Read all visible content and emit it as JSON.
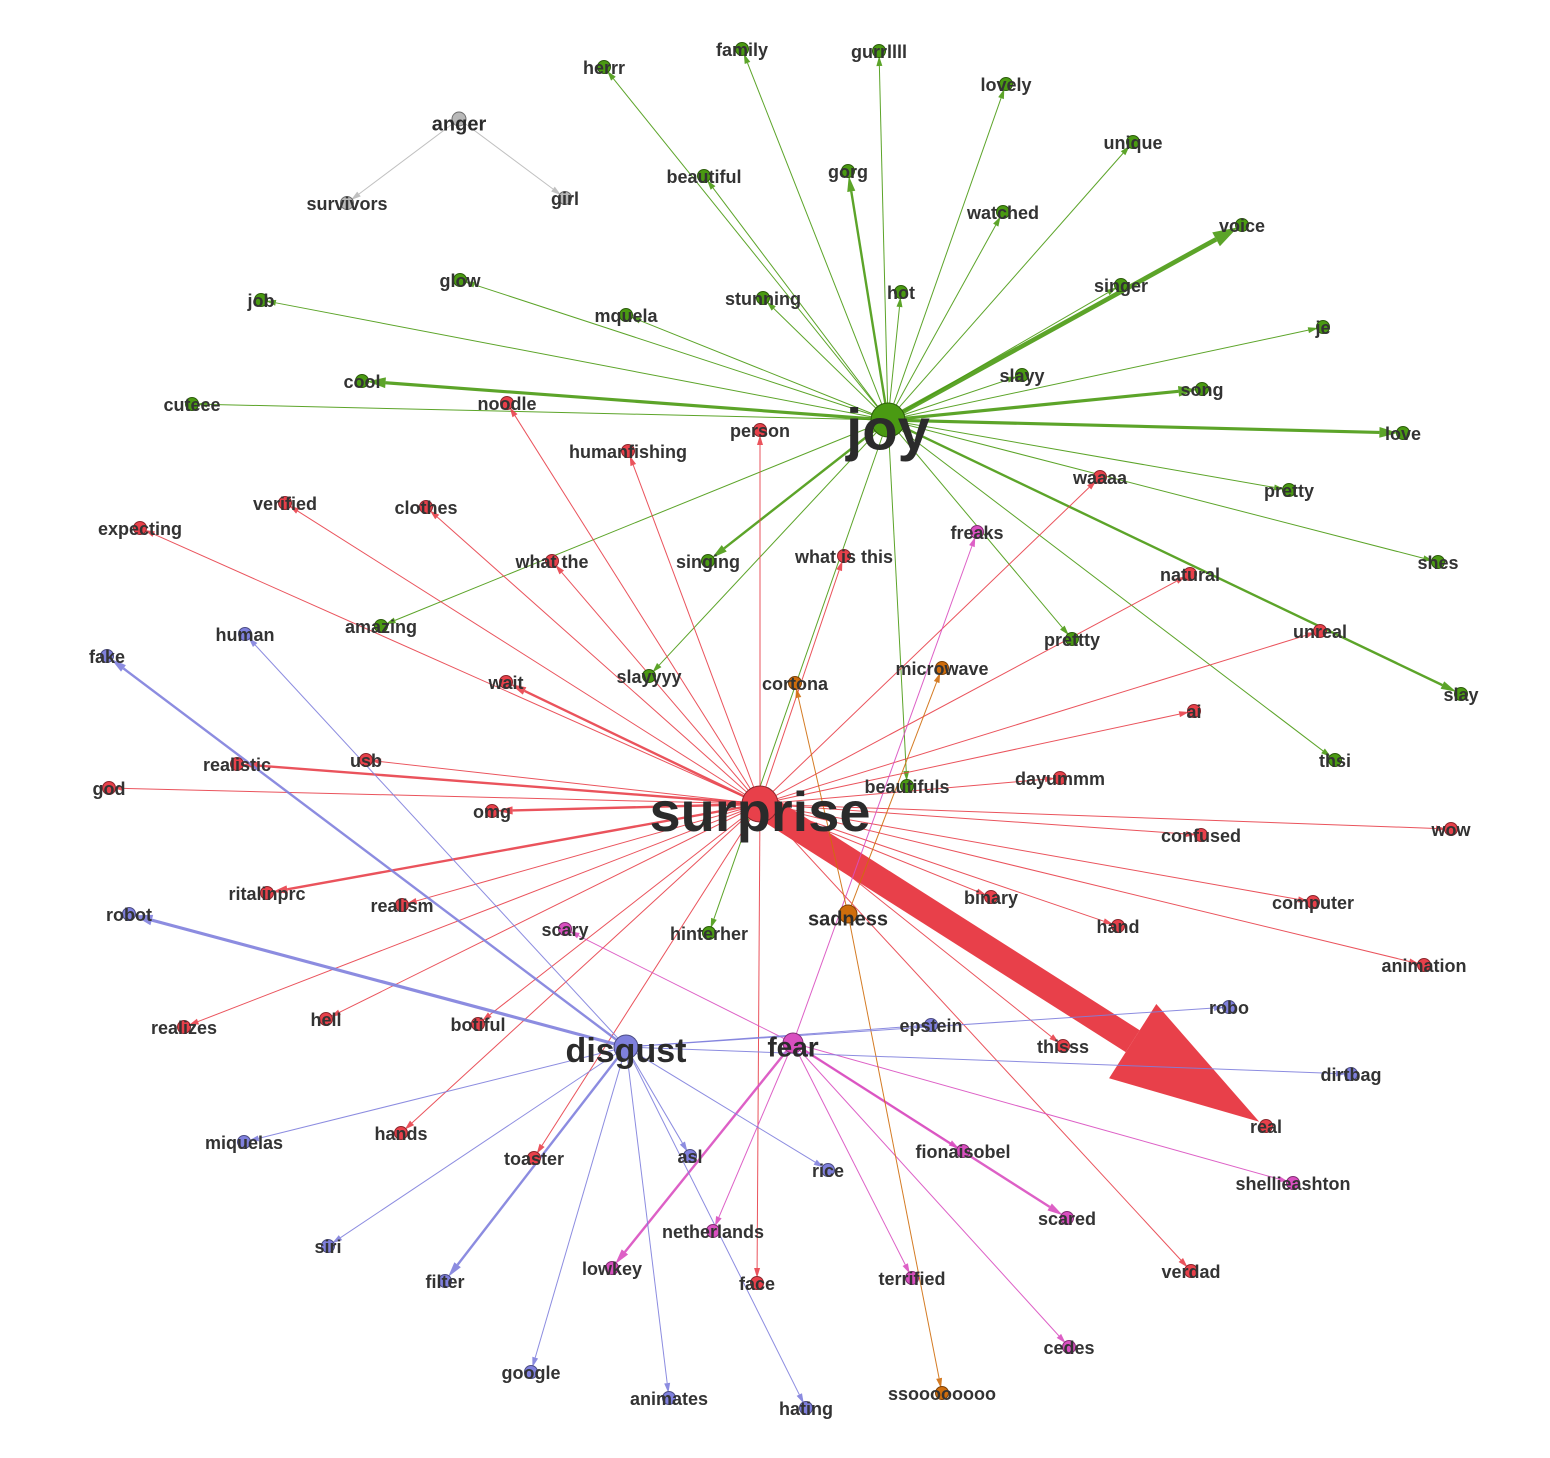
{
  "colors": {
    "joy": "#4a9a12",
    "surprise": "#e8404a",
    "disgust": "#7f80dd",
    "fear": "#d94fc0",
    "sadness": "#cf6d0c",
    "anger": "#b9b9b9"
  },
  "hubs": [
    {
      "id": "joy",
      "label": "joy",
      "group": "joy"
    },
    {
      "id": "surprise",
      "label": "surprise",
      "group": "surprise"
    },
    {
      "id": "disgust",
      "label": "disgust",
      "group": "disgust"
    },
    {
      "id": "fear",
      "label": "fear",
      "group": "fear"
    },
    {
      "id": "sadness",
      "label": "sadness",
      "group": "sadness"
    },
    {
      "id": "anger",
      "label": "anger",
      "group": "anger"
    }
  ],
  "nodes": [
    {
      "id": "herrr",
      "label": "herrr",
      "group": "joy"
    },
    {
      "id": "family",
      "label": "family",
      "group": "joy"
    },
    {
      "id": "gurrllll",
      "label": "gurrllll",
      "group": "joy"
    },
    {
      "id": "lovely",
      "label": "lovely",
      "group": "joy"
    },
    {
      "id": "unique",
      "label": "unique",
      "group": "joy"
    },
    {
      "id": "beautiful",
      "label": "beautiful",
      "group": "joy"
    },
    {
      "id": "gorg",
      "label": "gorg",
      "group": "joy"
    },
    {
      "id": "watched",
      "label": "watched",
      "group": "joy"
    },
    {
      "id": "voice",
      "label": "voice",
      "group": "joy"
    },
    {
      "id": "job",
      "label": "job",
      "group": "joy"
    },
    {
      "id": "glow",
      "label": "glow",
      "group": "joy"
    },
    {
      "id": "mquela",
      "label": "mquela",
      "group": "joy"
    },
    {
      "id": "stunning",
      "label": "stunning",
      "group": "joy"
    },
    {
      "id": "hot",
      "label": "hot",
      "group": "joy"
    },
    {
      "id": "singer",
      "label": "singer",
      "group": "joy"
    },
    {
      "id": "je",
      "label": "je",
      "group": "joy"
    },
    {
      "id": "cool",
      "label": "cool",
      "group": "joy"
    },
    {
      "id": "slayy",
      "label": "slayy",
      "group": "joy"
    },
    {
      "id": "song",
      "label": "song",
      "group": "joy"
    },
    {
      "id": "cuteee",
      "label": "cuteee",
      "group": "joy"
    },
    {
      "id": "love",
      "label": "love",
      "group": "joy"
    },
    {
      "id": "pretty",
      "label": "pretty",
      "group": "joy"
    },
    {
      "id": "shes",
      "label": "shes",
      "group": "joy"
    },
    {
      "id": "singing",
      "label": "singing",
      "group": "joy"
    },
    {
      "id": "amazing",
      "label": "amazing",
      "group": "joy"
    },
    {
      "id": "prettty",
      "label": "prettty",
      "group": "joy"
    },
    {
      "id": "slayyyy",
      "label": "slayyyy",
      "group": "joy"
    },
    {
      "id": "slay",
      "label": "slay",
      "group": "joy"
    },
    {
      "id": "thsi",
      "label": "thsi",
      "group": "joy"
    },
    {
      "id": "beautifuls",
      "label": "beautifuls",
      "group": "joy"
    },
    {
      "id": "hinterher",
      "label": "hinterher",
      "group": "joy"
    },
    {
      "id": "survivors",
      "label": "survivors",
      "group": "anger"
    },
    {
      "id": "girl",
      "label": "girl",
      "group": "anger"
    },
    {
      "id": "noodle",
      "label": "noodle",
      "group": "surprise"
    },
    {
      "id": "person",
      "label": "person",
      "group": "surprise"
    },
    {
      "id": "humanfishing",
      "label": "humanfishing",
      "group": "surprise"
    },
    {
      "id": "waaaa",
      "label": "waaaa",
      "group": "surprise"
    },
    {
      "id": "expecting",
      "label": "expecting",
      "group": "surprise"
    },
    {
      "id": "verified",
      "label": "verified",
      "group": "surprise"
    },
    {
      "id": "clothes",
      "label": "clothes",
      "group": "surprise"
    },
    {
      "id": "what_the",
      "label": "what the",
      "group": "surprise"
    },
    {
      "id": "what_is_this",
      "label": "what is this",
      "group": "surprise"
    },
    {
      "id": "natural",
      "label": "natural",
      "group": "surprise"
    },
    {
      "id": "unreal",
      "label": "unreal",
      "group": "surprise"
    },
    {
      "id": "wait",
      "label": "wait",
      "group": "surprise"
    },
    {
      "id": "ai",
      "label": "ai",
      "group": "surprise"
    },
    {
      "id": "realistic",
      "label": "realistic",
      "group": "surprise"
    },
    {
      "id": "usb",
      "label": "usb",
      "group": "surprise"
    },
    {
      "id": "god",
      "label": "god",
      "group": "surprise"
    },
    {
      "id": "omg",
      "label": "omg",
      "group": "surprise"
    },
    {
      "id": "dayummm",
      "label": "dayummm",
      "group": "surprise"
    },
    {
      "id": "confused",
      "label": "confused",
      "group": "surprise"
    },
    {
      "id": "wow",
      "label": "wow",
      "group": "surprise"
    },
    {
      "id": "ritalinprc",
      "label": "ritalinprc",
      "group": "surprise"
    },
    {
      "id": "realism",
      "label": "realism",
      "group": "surprise"
    },
    {
      "id": "binary",
      "label": "binary",
      "group": "surprise"
    },
    {
      "id": "computer",
      "label": "computer",
      "group": "surprise"
    },
    {
      "id": "hand",
      "label": "hand",
      "group": "surprise"
    },
    {
      "id": "animation",
      "label": "animation",
      "group": "surprise"
    },
    {
      "id": "realizes",
      "label": "realizes",
      "group": "surprise"
    },
    {
      "id": "hell",
      "label": "hell",
      "group": "surprise"
    },
    {
      "id": "botiful",
      "label": "botiful",
      "group": "surprise"
    },
    {
      "id": "thisss",
      "label": "thisss",
      "group": "surprise"
    },
    {
      "id": "real",
      "label": "real",
      "group": "surprise"
    },
    {
      "id": "hands",
      "label": "hands",
      "group": "surprise"
    },
    {
      "id": "toaster",
      "label": "toaster",
      "group": "surprise"
    },
    {
      "id": "face",
      "label": "face",
      "group": "surprise"
    },
    {
      "id": "verdad",
      "label": "verdad",
      "group": "surprise"
    },
    {
      "id": "freaks",
      "label": "freaks",
      "group": "fear"
    },
    {
      "id": "scary",
      "label": "scary",
      "group": "fear"
    },
    {
      "id": "fionaisobel",
      "label": "fionaisobel",
      "group": "fear"
    },
    {
      "id": "shellieashton",
      "label": "shellieashton",
      "group": "fear"
    },
    {
      "id": "scared",
      "label": "scared",
      "group": "fear"
    },
    {
      "id": "netherlands",
      "label": "netherlands",
      "group": "fear"
    },
    {
      "id": "lowkey",
      "label": "lowkey",
      "group": "fear"
    },
    {
      "id": "terrified",
      "label": "terrified",
      "group": "fear"
    },
    {
      "id": "cedes",
      "label": "cedes",
      "group": "fear"
    },
    {
      "id": "cortona",
      "label": "cortona",
      "group": "sadness"
    },
    {
      "id": "microwave",
      "label": "microwave",
      "group": "sadness"
    },
    {
      "id": "ssoooooooo",
      "label": "ssoooooooo",
      "group": "sadness"
    },
    {
      "id": "human",
      "label": "human",
      "group": "disgust"
    },
    {
      "id": "fake",
      "label": "fake",
      "group": "disgust"
    },
    {
      "id": "robot",
      "label": "robot",
      "group": "disgust"
    },
    {
      "id": "epstein",
      "label": "epstein",
      "group": "disgust"
    },
    {
      "id": "robo",
      "label": "robo",
      "group": "disgust"
    },
    {
      "id": "dirtbag",
      "label": "dirtbag",
      "group": "disgust"
    },
    {
      "id": "miquelas",
      "label": "miquelas",
      "group": "disgust"
    },
    {
      "id": "asl",
      "label": "asl",
      "group": "disgust"
    },
    {
      "id": "rice",
      "label": "rice",
      "group": "disgust"
    },
    {
      "id": "siri",
      "label": "siri",
      "group": "disgust"
    },
    {
      "id": "filter",
      "label": "filter",
      "group": "disgust"
    },
    {
      "id": "google",
      "label": "google",
      "group": "disgust"
    },
    {
      "id": "animates",
      "label": "animates",
      "group": "disgust"
    },
    {
      "id": "hating",
      "label": "hating",
      "group": "disgust"
    }
  ],
  "edges": [
    {
      "source": "joy",
      "target": "herrr",
      "weight": 1
    },
    {
      "source": "joy",
      "target": "family",
      "weight": 1
    },
    {
      "source": "joy",
      "target": "gurrllll",
      "weight": 1
    },
    {
      "source": "joy",
      "target": "lovely",
      "weight": 1
    },
    {
      "source": "joy",
      "target": "unique",
      "weight": 1
    },
    {
      "source": "joy",
      "target": "beautiful",
      "weight": 1
    },
    {
      "source": "joy",
      "target": "gorg",
      "weight": 2
    },
    {
      "source": "joy",
      "target": "watched",
      "weight": 1
    },
    {
      "source": "joy",
      "target": "voice",
      "weight": 5
    },
    {
      "source": "joy",
      "target": "job",
      "weight": 1
    },
    {
      "source": "joy",
      "target": "glow",
      "weight": 1
    },
    {
      "source": "joy",
      "target": "mquela",
      "weight": 1
    },
    {
      "source": "joy",
      "target": "stunning",
      "weight": 1
    },
    {
      "source": "joy",
      "target": "hot",
      "weight": 1
    },
    {
      "source": "joy",
      "target": "singer",
      "weight": 1
    },
    {
      "source": "joy",
      "target": "je",
      "weight": 1
    },
    {
      "source": "joy",
      "target": "cool",
      "weight": 3
    },
    {
      "source": "joy",
      "target": "slayy",
      "weight": 1
    },
    {
      "source": "joy",
      "target": "song",
      "weight": 3
    },
    {
      "source": "joy",
      "target": "cuteee",
      "weight": 1
    },
    {
      "source": "joy",
      "target": "love",
      "weight": 3
    },
    {
      "source": "joy",
      "target": "pretty",
      "weight": 1
    },
    {
      "source": "joy",
      "target": "shes",
      "weight": 1
    },
    {
      "source": "joy",
      "target": "singing",
      "weight": 2
    },
    {
      "source": "joy",
      "target": "amazing",
      "weight": 1
    },
    {
      "source": "joy",
      "target": "prettty",
      "weight": 1
    },
    {
      "source": "joy",
      "target": "slayyyy",
      "weight": 1
    },
    {
      "source": "joy",
      "target": "slay",
      "weight": 2
    },
    {
      "source": "joy",
      "target": "thsi",
      "weight": 1
    },
    {
      "source": "joy",
      "target": "beautifuls",
      "weight": 1
    },
    {
      "source": "joy",
      "target": "hinterher",
      "weight": 1
    },
    {
      "source": "anger",
      "target": "survivors",
      "weight": 1
    },
    {
      "source": "anger",
      "target": "girl",
      "weight": 1
    },
    {
      "source": "surprise",
      "target": "noodle",
      "weight": 1
    },
    {
      "source": "surprise",
      "target": "person",
      "weight": 1
    },
    {
      "source": "surprise",
      "target": "humanfishing",
      "weight": 1
    },
    {
      "source": "surprise",
      "target": "waaaa",
      "weight": 1
    },
    {
      "source": "surprise",
      "target": "expecting",
      "weight": 1
    },
    {
      "source": "surprise",
      "target": "verified",
      "weight": 1
    },
    {
      "source": "surprise",
      "target": "clothes",
      "weight": 1
    },
    {
      "source": "surprise",
      "target": "what_the",
      "weight": 1
    },
    {
      "source": "surprise",
      "target": "what_is_this",
      "weight": 1
    },
    {
      "source": "surprise",
      "target": "natural",
      "weight": 1
    },
    {
      "source": "surprise",
      "target": "unreal",
      "weight": 1
    },
    {
      "source": "surprise",
      "target": "wait",
      "weight": 2
    },
    {
      "source": "surprise",
      "target": "ai",
      "weight": 1
    },
    {
      "source": "surprise",
      "target": "realistic",
      "weight": 2
    },
    {
      "source": "surprise",
      "target": "usb",
      "weight": 1
    },
    {
      "source": "surprise",
      "target": "god",
      "weight": 1
    },
    {
      "source": "surprise",
      "target": "omg",
      "weight": 2
    },
    {
      "source": "surprise",
      "target": "dayummm",
      "weight": 1
    },
    {
      "source": "surprise",
      "target": "confused",
      "weight": 1
    },
    {
      "source": "surprise",
      "target": "wow",
      "weight": 1
    },
    {
      "source": "surprise",
      "target": "ritalinprc",
      "weight": 2
    },
    {
      "source": "surprise",
      "target": "realism",
      "weight": 1
    },
    {
      "source": "surprise",
      "target": "binary",
      "weight": 1
    },
    {
      "source": "surprise",
      "target": "computer",
      "weight": 1
    },
    {
      "source": "surprise",
      "target": "hand",
      "weight": 1
    },
    {
      "source": "surprise",
      "target": "animation",
      "weight": 1
    },
    {
      "source": "surprise",
      "target": "realizes",
      "weight": 1
    },
    {
      "source": "surprise",
      "target": "hell",
      "weight": 1
    },
    {
      "source": "surprise",
      "target": "botiful",
      "weight": 1
    },
    {
      "source": "surprise",
      "target": "thisss",
      "weight": 1
    },
    {
      "source": "surprise",
      "target": "real",
      "weight": 20
    },
    {
      "source": "surprise",
      "target": "hands",
      "weight": 1
    },
    {
      "source": "surprise",
      "target": "toaster",
      "weight": 1
    },
    {
      "source": "surprise",
      "target": "face",
      "weight": 1
    },
    {
      "source": "surprise",
      "target": "verdad",
      "weight": 1
    },
    {
      "source": "fear",
      "target": "freaks",
      "weight": 1
    },
    {
      "source": "fear",
      "target": "scary",
      "weight": 1
    },
    {
      "source": "fear",
      "target": "fionaisobel",
      "weight": 1
    },
    {
      "source": "fear",
      "target": "shellieashton",
      "weight": 1
    },
    {
      "source": "fear",
      "target": "scared",
      "weight": 2
    },
    {
      "source": "fear",
      "target": "netherlands",
      "weight": 1
    },
    {
      "source": "fear",
      "target": "lowkey",
      "weight": 2
    },
    {
      "source": "fear",
      "target": "terrified",
      "weight": 1
    },
    {
      "source": "fear",
      "target": "cedes",
      "weight": 1
    },
    {
      "source": "sadness",
      "target": "cortona",
      "weight": 1
    },
    {
      "source": "sadness",
      "target": "microwave",
      "weight": 1
    },
    {
      "source": "sadness",
      "target": "ssoooooooo",
      "weight": 1
    },
    {
      "source": "disgust",
      "target": "human",
      "weight": 1
    },
    {
      "source": "disgust",
      "target": "fake",
      "weight": 2
    },
    {
      "source": "disgust",
      "target": "robot",
      "weight": 3
    },
    {
      "source": "disgust",
      "target": "epstein",
      "weight": 1
    },
    {
      "source": "disgust",
      "target": "robo",
      "weight": 1
    },
    {
      "source": "disgust",
      "target": "dirtbag",
      "weight": 1
    },
    {
      "source": "disgust",
      "target": "miquelas",
      "weight": 1
    },
    {
      "source": "disgust",
      "target": "asl",
      "weight": 1
    },
    {
      "source": "disgust",
      "target": "rice",
      "weight": 1
    },
    {
      "source": "disgust",
      "target": "siri",
      "weight": 1
    },
    {
      "source": "disgust",
      "target": "filter",
      "weight": 2
    },
    {
      "source": "disgust",
      "target": "google",
      "weight": 1
    },
    {
      "source": "disgust",
      "target": "animates",
      "weight": 1
    },
    {
      "source": "disgust",
      "target": "hating",
      "weight": 1
    }
  ]
}
